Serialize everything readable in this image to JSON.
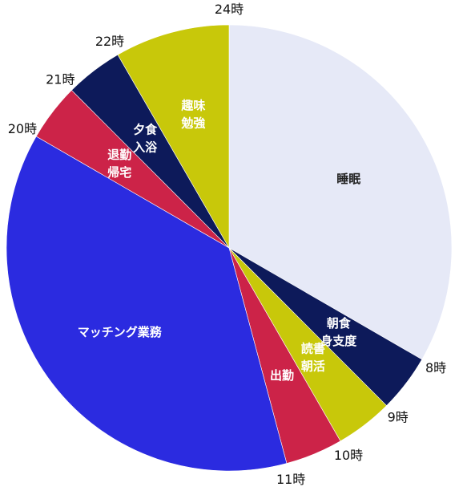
{
  "chart_data": {
    "type": "pie",
    "title": "",
    "start_hour": 24,
    "slices": [
      {
        "label": "睡眠",
        "lines": [
          "睡眠"
        ],
        "start": 0,
        "end": 8,
        "color": "#e6e9f7",
        "text_color": "#222222"
      },
      {
        "label": "朝食身支度",
        "lines": [
          "朝食",
          "身支度"
        ],
        "start": 8,
        "end": 9,
        "color": "#0d1a5a",
        "text_color": "#ffffff"
      },
      {
        "label": "読書朝活",
        "lines": [
          "読書",
          "朝活"
        ],
        "start": 9,
        "end": 10,
        "color": "#c8c80a",
        "text_color": "#ffffff"
      },
      {
        "label": "出勤",
        "lines": [
          "出勤"
        ],
        "start": 10,
        "end": 11,
        "color": "#cc2348",
        "text_color": "#ffffff"
      },
      {
        "label": "マッチング業務",
        "lines": [
          "マッチング業務"
        ],
        "start": 11,
        "end": 20,
        "color": "#2b2be0",
        "text_color": "#ffffff"
      },
      {
        "label": "退勤帰宅",
        "lines": [
          "退勤",
          "帰宅"
        ],
        "start": 20,
        "end": 21,
        "color": "#cc2348",
        "text_color": "#ffffff"
      },
      {
        "label": "夕食入浴",
        "lines": [
          "夕食",
          "入浴"
        ],
        "start": 21,
        "end": 22,
        "color": "#0d1a5a",
        "text_color": "#ffffff"
      },
      {
        "label": "趣味勉強",
        "lines": [
          "趣味",
          "勉強"
        ],
        "start": 22,
        "end": 24,
        "color": "#c8c80a",
        "text_color": "#ffffff"
      }
    ],
    "hour_labels": [
      {
        "hour": 24,
        "text": "24時"
      },
      {
        "hour": 8,
        "text": "8時"
      },
      {
        "hour": 9,
        "text": "9時"
      },
      {
        "hour": 10,
        "text": "10時"
      },
      {
        "hour": 11,
        "text": "11時"
      },
      {
        "hour": 20,
        "text": "20時"
      },
      {
        "hour": 21,
        "text": "21時"
      },
      {
        "hour": 22,
        "text": "22時"
      }
    ]
  }
}
